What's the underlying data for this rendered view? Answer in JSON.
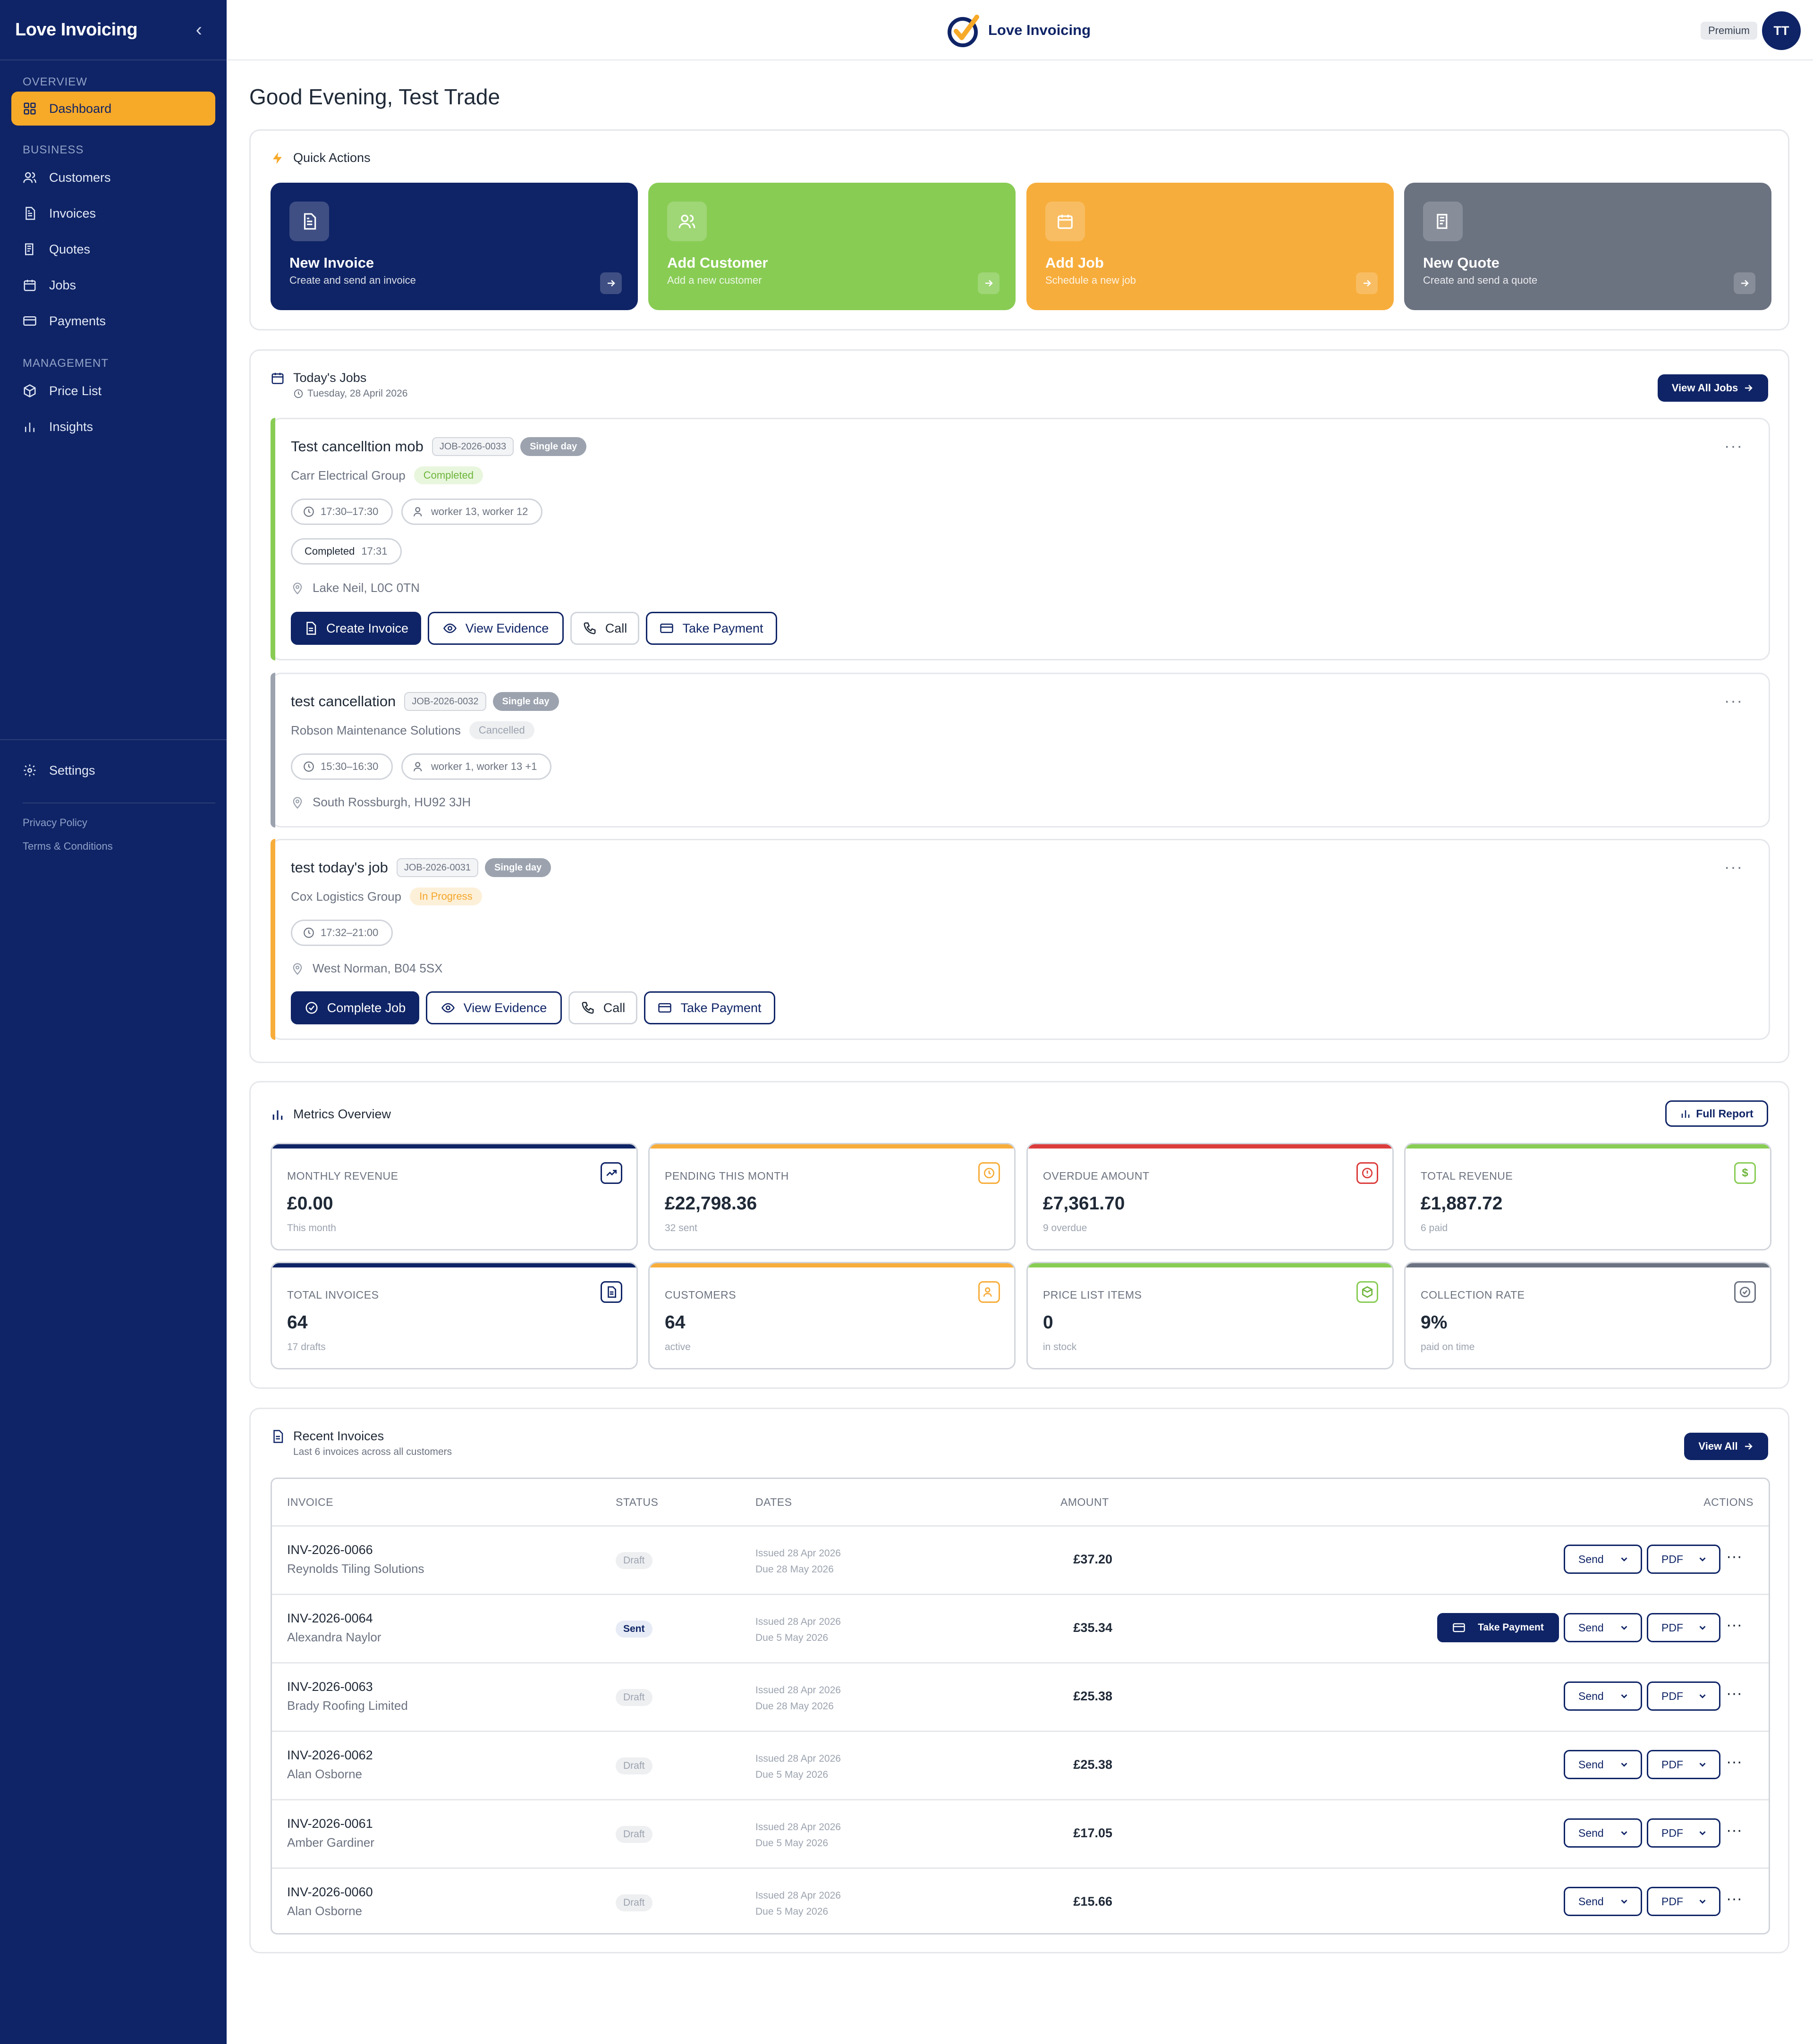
{
  "app": {
    "name": "Love Invoicing"
  },
  "sidebar": {
    "sections": [
      {
        "label": "OVERVIEW"
      },
      {
        "label": "BUSINESS"
      },
      {
        "label": "MANAGEMENT"
      }
    ],
    "items": [
      {
        "label": "Dashboard",
        "icon": "dashboard-icon",
        "active": true
      },
      {
        "label": "Customers",
        "icon": "users-icon"
      },
      {
        "label": "Invoices",
        "icon": "invoice-icon"
      },
      {
        "label": "Quotes",
        "icon": "quote-icon"
      },
      {
        "label": "Jobs",
        "icon": "calendar-icon"
      },
      {
        "label": "Payments",
        "icon": "card-icon"
      },
      {
        "label": "Price List",
        "icon": "box-icon"
      },
      {
        "label": "Insights",
        "icon": "bar-chart-icon"
      }
    ],
    "settings_label": "Settings",
    "privacy_label": "Privacy Policy",
    "terms_label": "Terms & Conditions"
  },
  "header": {
    "logo_text": "Love Invoicing",
    "plan": "Premium",
    "avatar": "TT"
  },
  "greeting": "Good Evening, Test Trade",
  "quick_actions": {
    "title": "Quick Actions",
    "tiles": [
      {
        "title": "New Invoice",
        "subtitle": "Create and send an invoice",
        "color": "#0f2466"
      },
      {
        "title": "Add Customer",
        "subtitle": "Add a new customer",
        "color": "#88cc54"
      },
      {
        "title": "Add Job",
        "subtitle": "Schedule a new job",
        "color": "#f7ad3b"
      },
      {
        "title": "New Quote",
        "subtitle": "Create and send a quote",
        "color": "#6b7280"
      }
    ]
  },
  "todays_jobs": {
    "title": "Today's Jobs",
    "date": "Tuesday, 28 April 2026",
    "view_all": "View All Jobs",
    "jobs": [
      {
        "name": "Test cancelltion mob",
        "ref": "JOB-2026-0033",
        "type": "Single day",
        "customer": "Carr Electrical Group",
        "status": "Completed",
        "time": "17:30–17:30",
        "workers": "worker 13, worker 12",
        "completed_label": "Completed",
        "completed_time": "17:31",
        "address": "Lake Neil, L0C 0TN",
        "actions": [
          "Create Invoice",
          "View Evidence",
          "Call",
          "Take Payment"
        ]
      },
      {
        "name": "test cancellation",
        "ref": "JOB-2026-0032",
        "type": "Single day",
        "customer": "Robson Maintenance Solutions",
        "status": "Cancelled",
        "time": "15:30–16:30",
        "workers": "worker 1, worker 13 +1",
        "address": "South Rossburgh, HU92 3JH"
      },
      {
        "name": "test today's job",
        "ref": "JOB-2026-0031",
        "type": "Single day",
        "customer": "Cox Logistics Group",
        "status": "In Progress",
        "time": "17:32–21:00",
        "address": "West Norman, B04 5SX",
        "actions": [
          "Complete Job",
          "View Evidence",
          "Call",
          "Take Payment"
        ]
      }
    ]
  },
  "metrics": {
    "title": "Metrics Overview",
    "full_report": "Full Report",
    "cards": [
      {
        "label": "MONTHLY REVENUE",
        "value": "£0.00",
        "sub": "This month",
        "color": "#0f2466"
      },
      {
        "label": "PENDING THIS MONTH",
        "value": "£22,798.36",
        "sub": "32 sent",
        "color": "#f7ad3b"
      },
      {
        "label": "OVERDUE AMOUNT",
        "value": "£7,361.70",
        "sub": "9 overdue",
        "color": "#dc3c3c"
      },
      {
        "label": "TOTAL REVENUE",
        "value": "£1,887.72",
        "sub": "6 paid",
        "color": "#88cc54"
      },
      {
        "label": "TOTAL INVOICES",
        "value": "64",
        "sub": "17 drafts",
        "color": "#0f2466"
      },
      {
        "label": "CUSTOMERS",
        "value": "64",
        "sub": "active",
        "color": "#f7ad3b"
      },
      {
        "label": "PRICE LIST ITEMS",
        "value": "0",
        "sub": "in stock",
        "color": "#88cc54"
      },
      {
        "label": "COLLECTION RATE",
        "value": "9%",
        "sub": "paid on time",
        "color": "#6b7280"
      }
    ]
  },
  "recent_invoices": {
    "title": "Recent Invoices",
    "subtitle": "Last 6 invoices across all customers",
    "view_all": "View All",
    "columns": [
      "INVOICE",
      "STATUS",
      "DATES",
      "AMOUNT",
      "ACTIONS"
    ],
    "send_label": "Send",
    "pdf_label": "PDF",
    "take_payment_label": "Take Payment",
    "rows": [
      {
        "number": "INV-2026-0066",
        "customer": "Reynolds Tiling Solutions",
        "status": "Draft",
        "issued": "Issued 28 Apr 2026",
        "due": "Due 28 May 2026",
        "amount": "£37.20"
      },
      {
        "number": "INV-2026-0064",
        "customer": "Alexandra Naylor",
        "status": "Sent",
        "issued": "Issued 28 Apr 2026",
        "due": "Due 5 May 2026",
        "amount": "£35.34"
      },
      {
        "number": "INV-2026-0063",
        "customer": "Brady Roofing Limited",
        "status": "Draft",
        "issued": "Issued 28 Apr 2026",
        "due": "Due 28 May 2026",
        "amount": "£25.38"
      },
      {
        "number": "INV-2026-0062",
        "customer": "Alan Osborne",
        "status": "Draft",
        "issued": "Issued 28 Apr 2026",
        "due": "Due 5 May 2026",
        "amount": "£25.38"
      },
      {
        "number": "INV-2026-0061",
        "customer": "Amber Gardiner",
        "status": "Draft",
        "issued": "Issued 28 Apr 2026",
        "due": "Due 5 May 2026",
        "amount": "£17.05"
      },
      {
        "number": "INV-2026-0060",
        "customer": "Alan Osborne",
        "status": "Draft",
        "issued": "Issued 28 Apr 2026",
        "due": "Due 5 May 2026",
        "amount": "£15.66"
      }
    ]
  }
}
